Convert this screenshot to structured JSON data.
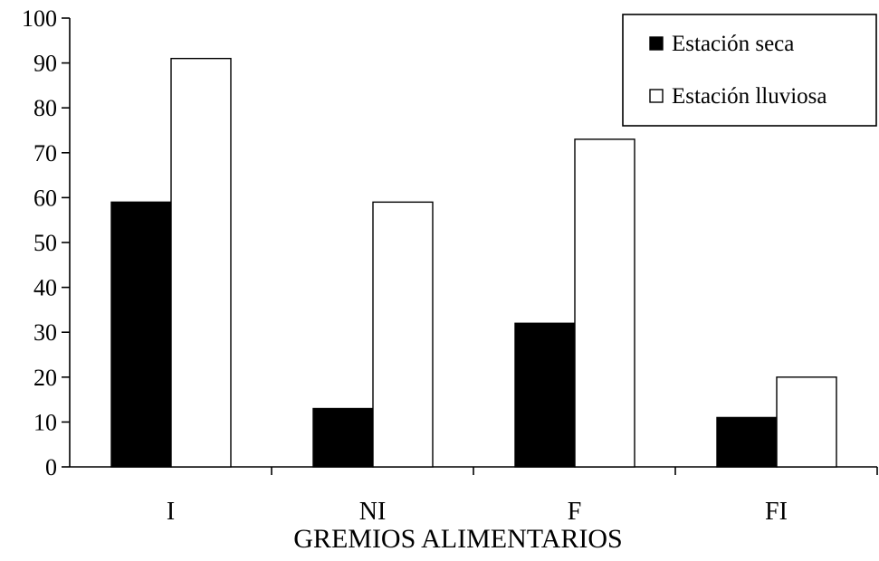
{
  "chart_data": {
    "type": "bar",
    "title": "",
    "xlabel": "GREMIOS ALIMENTARIOS",
    "ylabel": "",
    "categories": [
      "I",
      "NI",
      "F",
      "FI"
    ],
    "ylim": [
      0,
      100
    ],
    "yticks": [
      0,
      10,
      20,
      30,
      40,
      50,
      60,
      70,
      80,
      90,
      100
    ],
    "grid": false,
    "legend_position": "top-right",
    "series": [
      {
        "name": "Estación seca",
        "color": "#000000",
        "values": [
          59,
          13,
          32,
          11
        ]
      },
      {
        "name": "Estación lluviosa",
        "color": "#ffffff",
        "values": [
          91,
          59,
          73,
          20
        ]
      }
    ]
  }
}
